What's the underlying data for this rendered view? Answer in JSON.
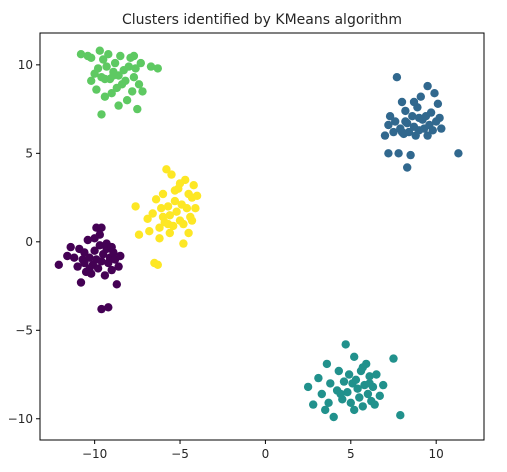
{
  "chart_data": {
    "type": "scatter",
    "title": "Clusters identified by KMeans algorithm",
    "xlabel": "",
    "ylabel": "",
    "xlim": [
      -13.2,
      12.8
    ],
    "ylim": [
      -11.2,
      11.8
    ],
    "xticks": [
      -10,
      -5,
      0,
      5,
      10
    ],
    "yticks": [
      -10,
      -5,
      0,
      5,
      10
    ],
    "xtick_labels": [
      "−10",
      "−5",
      "0",
      "5",
      "10"
    ],
    "ytick_labels": [
      "−10",
      "−5",
      "0",
      "5",
      "10"
    ],
    "grid": false,
    "colors": [
      "#440154",
      "#31688e",
      "#21918c",
      "#5ec962",
      "#fde725"
    ],
    "series": [
      {
        "color_index": 0,
        "points": [
          [
            -12.1,
            -1.3
          ],
          [
            -11.6,
            -0.8
          ],
          [
            -11.4,
            -0.3
          ],
          [
            -11.2,
            -0.9
          ],
          [
            -11.0,
            -1.4
          ],
          [
            -10.9,
            -0.4
          ],
          [
            -10.8,
            -2.3
          ],
          [
            -10.7,
            -1.0
          ],
          [
            -10.6,
            -0.6
          ],
          [
            -10.5,
            -1.7
          ],
          [
            -10.4,
            0.1
          ],
          [
            -10.3,
            -0.9
          ],
          [
            -10.2,
            -1.8
          ],
          [
            -10.1,
            -1.3
          ],
          [
            -10.0,
            -0.5
          ],
          [
            -9.9,
            -1.0
          ],
          [
            -9.8,
            -1.5
          ],
          [
            -9.7,
            -0.2
          ],
          [
            -9.6,
            -1.1
          ],
          [
            -9.5,
            -0.7
          ],
          [
            -9.4,
            -1.9
          ],
          [
            -9.3,
            -0.4
          ],
          [
            -9.2,
            -1.2
          ],
          [
            -9.1,
            -0.9
          ],
          [
            -9.0,
            -1.6
          ],
          [
            -8.9,
            -0.6
          ],
          [
            -8.8,
            -1.0
          ],
          [
            -8.7,
            -2.4
          ],
          [
            -8.6,
            -1.4
          ],
          [
            -8.5,
            -0.8
          ],
          [
            -9.7,
            0.4
          ],
          [
            -9.9,
            0.8
          ],
          [
            -9.6,
            0.8
          ],
          [
            -10.0,
            0.2
          ],
          [
            -9.3,
            -0.1
          ],
          [
            -9.6,
            -3.8
          ],
          [
            -9.2,
            -3.7
          ],
          [
            -10.3,
            -1.5
          ],
          [
            -9.0,
            -0.3
          ],
          [
            -10.6,
            -1.2
          ]
        ]
      },
      {
        "color_index": 1,
        "points": [
          [
            7.0,
            6.0
          ],
          [
            7.2,
            6.6
          ],
          [
            7.3,
            7.1
          ],
          [
            7.5,
            6.2
          ],
          [
            7.6,
            6.8
          ],
          [
            7.7,
            9.3
          ],
          [
            7.8,
            5.0
          ],
          [
            7.9,
            6.4
          ],
          [
            8.0,
            7.9
          ],
          [
            8.1,
            6.1
          ],
          [
            8.2,
            7.4
          ],
          [
            8.3,
            6.7
          ],
          [
            8.4,
            6.2
          ],
          [
            8.5,
            4.9
          ],
          [
            8.6,
            7.1
          ],
          [
            8.7,
            6.5
          ],
          [
            8.8,
            6.0
          ],
          [
            8.9,
            7.6
          ],
          [
            9.0,
            6.3
          ],
          [
            9.1,
            8.2
          ],
          [
            9.2,
            6.9
          ],
          [
            9.3,
            6.4
          ],
          [
            9.4,
            7.1
          ],
          [
            9.5,
            8.8
          ],
          [
            9.6,
            6.6
          ],
          [
            9.7,
            7.3
          ],
          [
            9.8,
            6.3
          ],
          [
            9.9,
            8.4
          ],
          [
            10.0,
            6.8
          ],
          [
            10.2,
            7.0
          ],
          [
            10.3,
            6.4
          ],
          [
            11.3,
            5.0
          ],
          [
            8.3,
            4.2
          ],
          [
            7.2,
            5.0
          ],
          [
            8.0,
            6.2
          ],
          [
            9.0,
            7.0
          ],
          [
            8.2,
            6.8
          ],
          [
            10.1,
            7.8
          ],
          [
            9.5,
            6.0
          ],
          [
            8.7,
            7.9
          ]
        ]
      },
      {
        "color_index": 2,
        "points": [
          [
            2.5,
            -8.2
          ],
          [
            2.8,
            -9.2
          ],
          [
            3.1,
            -7.7
          ],
          [
            3.3,
            -8.6
          ],
          [
            3.5,
            -9.5
          ],
          [
            3.6,
            -6.9
          ],
          [
            3.8,
            -8.0
          ],
          [
            4.0,
            -9.9
          ],
          [
            4.2,
            -8.4
          ],
          [
            4.3,
            -7.3
          ],
          [
            4.5,
            -8.9
          ],
          [
            4.6,
            -7.9
          ],
          [
            4.7,
            -5.8
          ],
          [
            4.8,
            -8.5
          ],
          [
            4.9,
            -7.5
          ],
          [
            5.0,
            -9.1
          ],
          [
            5.1,
            -8.0
          ],
          [
            5.2,
            -9.5
          ],
          [
            5.3,
            -7.8
          ],
          [
            5.4,
            -8.3
          ],
          [
            5.5,
            -8.8
          ],
          [
            5.6,
            -7.3
          ],
          [
            5.7,
            -9.3
          ],
          [
            5.8,
            -8.1
          ],
          [
            5.9,
            -6.9
          ],
          [
            6.0,
            -8.6
          ],
          [
            6.1,
            -7.6
          ],
          [
            6.2,
            -9.0
          ],
          [
            6.3,
            -8.2
          ],
          [
            6.5,
            -7.5
          ],
          [
            6.7,
            -8.7
          ],
          [
            6.9,
            -8.1
          ],
          [
            7.5,
            -6.6
          ],
          [
            7.9,
            -9.8
          ],
          [
            5.2,
            -6.5
          ],
          [
            4.4,
            -8.6
          ],
          [
            5.7,
            -7.1
          ],
          [
            6.4,
            -9.2
          ],
          [
            3.7,
            -9.1
          ],
          [
            6.1,
            -8.0
          ]
        ]
      },
      {
        "color_index": 3,
        "points": [
          [
            -10.8,
            10.6
          ],
          [
            -10.4,
            10.5
          ],
          [
            -10.2,
            9.1
          ],
          [
            -10.0,
            9.5
          ],
          [
            -9.9,
            8.6
          ],
          [
            -9.7,
            10.8
          ],
          [
            -9.6,
            9.3
          ],
          [
            -9.5,
            10.3
          ],
          [
            -9.4,
            8.2
          ],
          [
            -9.3,
            9.9
          ],
          [
            -9.2,
            10.6
          ],
          [
            -9.1,
            9.2
          ],
          [
            -9.0,
            8.4
          ],
          [
            -8.9,
            9.6
          ],
          [
            -8.8,
            10.1
          ],
          [
            -8.7,
            8.7
          ],
          [
            -8.6,
            9.4
          ],
          [
            -8.5,
            10.5
          ],
          [
            -8.4,
            8.9
          ],
          [
            -8.3,
            9.7
          ],
          [
            -8.2,
            9.1
          ],
          [
            -8.1,
            8.0
          ],
          [
            -8.0,
            9.9
          ],
          [
            -7.9,
            10.4
          ],
          [
            -7.8,
            8.5
          ],
          [
            -7.7,
            9.3
          ],
          [
            -7.6,
            9.8
          ],
          [
            -7.5,
            7.5
          ],
          [
            -7.4,
            8.9
          ],
          [
            -7.3,
            10.1
          ],
          [
            -6.7,
            9.9
          ],
          [
            -6.3,
            9.8
          ],
          [
            -9.6,
            7.2
          ],
          [
            -10.2,
            10.4
          ],
          [
            -9.4,
            9.2
          ],
          [
            -8.6,
            7.7
          ],
          [
            -7.7,
            10.5
          ],
          [
            -8.9,
            9.4
          ],
          [
            -7.2,
            8.5
          ],
          [
            -9.8,
            9.8
          ]
        ]
      },
      {
        "color_index": 4,
        "points": [
          [
            -7.6,
            2.0
          ],
          [
            -7.4,
            0.4
          ],
          [
            -6.9,
            1.3
          ],
          [
            -6.8,
            0.6
          ],
          [
            -6.6,
            1.6
          ],
          [
            -6.5,
            -1.2
          ],
          [
            -6.4,
            2.4
          ],
          [
            -6.3,
            -1.3
          ],
          [
            -6.2,
            0.8
          ],
          [
            -6.1,
            1.9
          ],
          [
            -6.0,
            2.7
          ],
          [
            -5.9,
            1.1
          ],
          [
            -5.8,
            4.1
          ],
          [
            -5.7,
            2.0
          ],
          [
            -5.6,
            1.5
          ],
          [
            -5.5,
            3.8
          ],
          [
            -5.4,
            0.9
          ],
          [
            -5.3,
            2.3
          ],
          [
            -5.2,
            1.7
          ],
          [
            -5.1,
            3.0
          ],
          [
            -5.0,
            1.2
          ],
          [
            -4.9,
            2.1
          ],
          [
            -4.8,
            -0.1
          ],
          [
            -4.7,
            3.5
          ],
          [
            -4.6,
            1.9
          ],
          [
            -4.5,
            2.7
          ],
          [
            -4.4,
            1.4
          ],
          [
            -4.3,
            2.5
          ],
          [
            -4.2,
            3.2
          ],
          [
            -4.1,
            1.9
          ],
          [
            -4.0,
            2.6
          ],
          [
            -5.6,
            0.5
          ],
          [
            -6.2,
            0.2
          ],
          [
            -4.8,
            1.0
          ],
          [
            -5.3,
            2.9
          ],
          [
            -6.0,
            1.4
          ],
          [
            -4.5,
            0.5
          ],
          [
            -5.0,
            3.3
          ],
          [
            -5.7,
            1.0
          ],
          [
            -4.3,
            1.2
          ]
        ]
      }
    ]
  }
}
